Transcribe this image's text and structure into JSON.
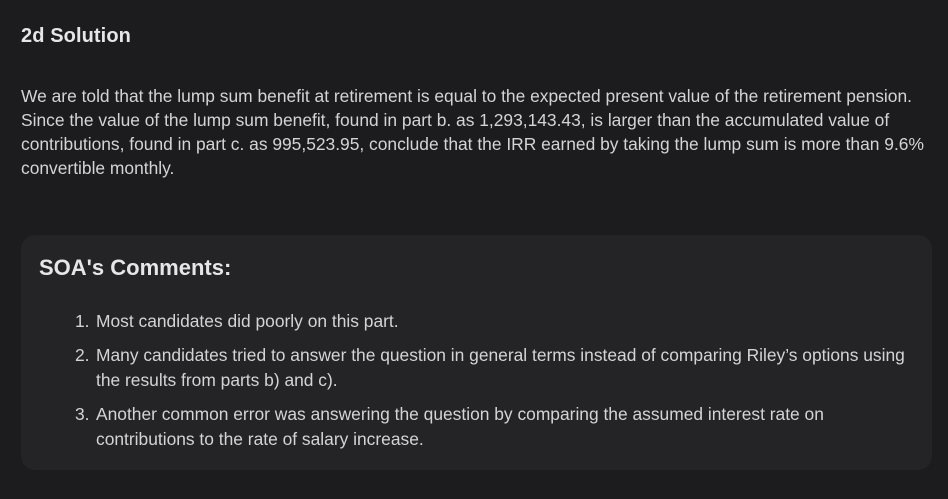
{
  "solution": {
    "heading": "2d Solution",
    "body": "We are told that the lump sum benefit at retirement is equal to the expected present value of the retirement pension. Since the value of the lump sum benefit, found in part b. as 1,293,143.43, is larger than the accumulated value of contributions, found in part c. as 995,523.95, conclude that the IRR earned by taking the lump sum is more than 9.6% convertible monthly."
  },
  "comments": {
    "heading": "SOA's Comments:",
    "items": [
      {
        "number": "1.",
        "text": "Most candidates did poorly on this part."
      },
      {
        "number": "2.",
        "text": "Many candidates tried to answer the question in general terms instead of comparing Riley’s options using the results from parts b) and c)."
      },
      {
        "number": "3.",
        "text": "Another common error was answering the question by comparing the assumed interest rate on contributions to the rate of salary increase."
      }
    ]
  }
}
